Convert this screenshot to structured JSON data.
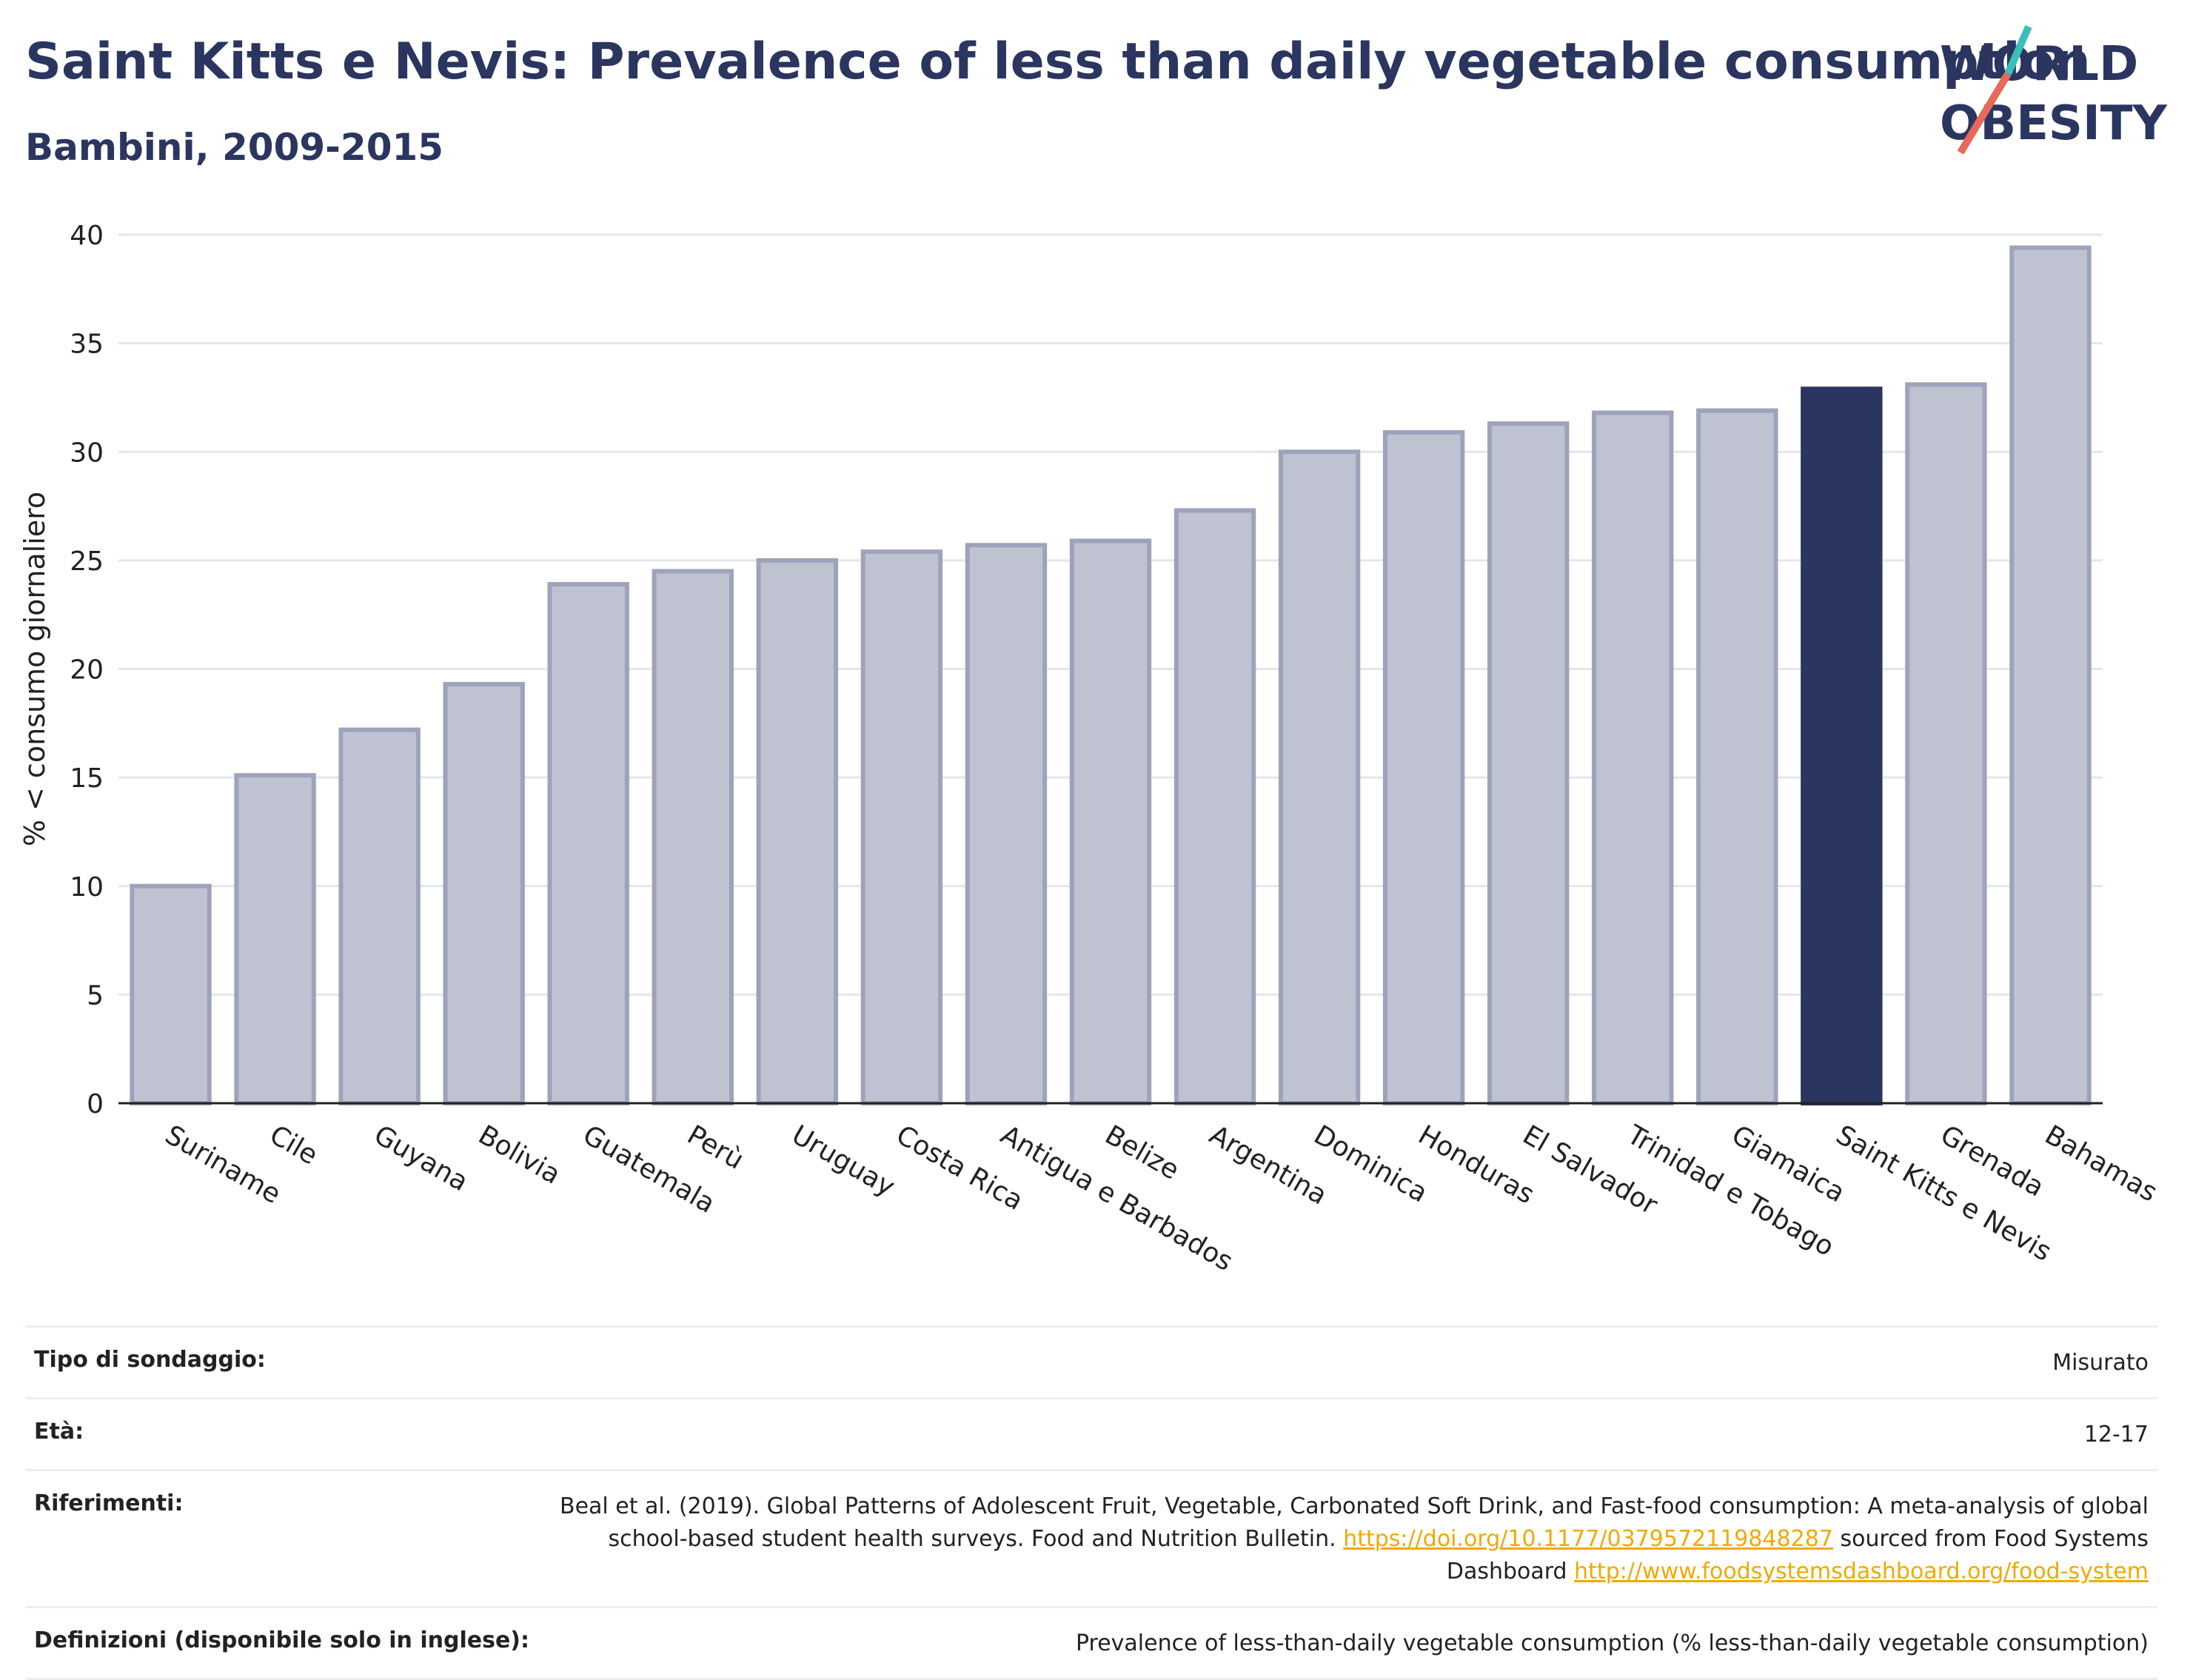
{
  "header": {
    "title": "Saint Kitts e Nevis: Prevalence of less than daily vegetable consumption",
    "subtitle": "Bambini, 2009-2015"
  },
  "logo": {
    "line1": "WORLD",
    "line2": "OBESITY",
    "slash_color_top": "#3bbfb9",
    "slash_color_bottom": "#e8685a"
  },
  "colors": {
    "bar_default": "#bfc3d1",
    "bar_default_edge": "#9da3ba",
    "bar_highlight": "#2a3560",
    "grid": "#e4e6ee",
    "axis": "#222222"
  },
  "chart_data": {
    "type": "bar",
    "title": "Saint Kitts e Nevis: Prevalence of less than daily vegetable consumption",
    "subtitle": "Bambini, 2009-2015",
    "xlabel": "",
    "ylabel": "% < consumo giornaliero",
    "ylim": [
      0,
      40
    ],
    "yticks": [
      0,
      5,
      10,
      15,
      20,
      25,
      30,
      35,
      40
    ],
    "grid": true,
    "highlight": "Saint Kitts e Nevis",
    "categories": [
      "Suriname",
      "Cile",
      "Guyana",
      "Bolivia",
      "Guatemala",
      "Perù",
      "Uruguay",
      "Costa Rica",
      "Antigua e Barbados",
      "Belize",
      "Argentina",
      "Dominica",
      "Honduras",
      "El Salvador",
      "Trinidad e Tobago",
      "Giamaica",
      "Saint Kitts e Nevis",
      "Grenada",
      "Bahamas"
    ],
    "values": [
      10.0,
      15.1,
      17.2,
      19.3,
      23.9,
      24.5,
      25.0,
      25.4,
      25.7,
      25.9,
      27.3,
      30.0,
      30.9,
      31.3,
      31.8,
      31.9,
      32.9,
      33.1,
      39.4
    ]
  },
  "meta": {
    "rows": [
      {
        "label": "Tipo di sondaggio:",
        "value": "Misurato"
      },
      {
        "label": "Età:",
        "value": "12-17"
      },
      {
        "label": "Definizioni (disponibile solo in inglese):",
        "value": "Prevalence of less-than-daily vegetable consumption (% less-than-daily vegetable consumption)"
      }
    ],
    "references": {
      "label": "Riferimenti:",
      "text_part1": "Beal et al. (2019). Global Patterns of Adolescent Fruit, Vegetable, Carbonated Soft Drink, and Fast-food consumption: A meta-analysis of global school-based student health surveys. Food and Nutrition Bulletin.",
      "link1": "https://doi.org/10.1177/0379572119848287",
      "text_part2": "sourced from Food Systems Dashboard",
      "link2": "http://www.foodsystemsdashboard.org/food-system"
    }
  }
}
